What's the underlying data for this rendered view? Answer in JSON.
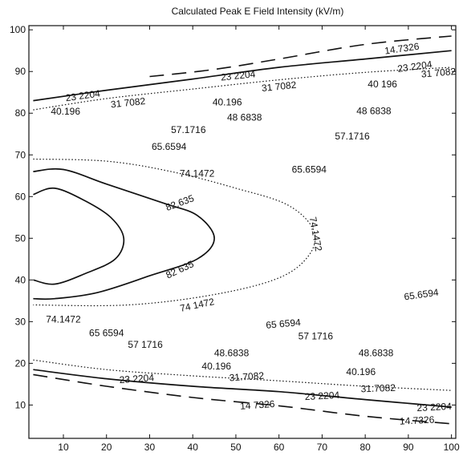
{
  "chart_data": {
    "type": "contour",
    "title": "Calculated Peak E Field Intensity (kV/m)",
    "xlabel": "",
    "ylabel": "",
    "xlim": [
      2,
      101
    ],
    "ylim": [
      2,
      101
    ],
    "xticks": [
      10,
      20,
      30,
      40,
      50,
      60,
      70,
      80,
      90,
      100
    ],
    "yticks": [
      10,
      20,
      30,
      40,
      50,
      60,
      70,
      80,
      90,
      100
    ],
    "grid": false,
    "legend": "none",
    "line_color": "#111111",
    "contours": [
      {
        "level": "14.7326",
        "style": "dashed",
        "paths": [
          [
            [
              30,
              88.8
            ],
            [
              45,
              90.5
            ],
            [
              60,
              93
            ],
            [
              80,
              96.5
            ],
            [
              100,
              98.5
            ]
          ],
          [
            [
              3,
              17.3
            ],
            [
              20,
              14.5
            ],
            [
              40,
              11.8
            ],
            [
              60,
              9.8
            ],
            [
              80,
              7.3
            ],
            [
              100,
              5.5
            ]
          ]
        ]
      },
      {
        "level": "23.2204",
        "style": "solid",
        "paths": [
          [
            [
              3,
              83
            ],
            [
              20,
              85.5
            ],
            [
              40,
              88.2
            ],
            [
              60,
              91
            ],
            [
              80,
              93
            ],
            [
              100,
              95
            ]
          ],
          [
            [
              3,
              18.5
            ],
            [
              20,
              16.3
            ],
            [
              40,
              14.5
            ],
            [
              60,
              13.2
            ],
            [
              80,
              11.3
            ],
            [
              100,
              9.5
            ]
          ]
        ]
      },
      {
        "level": "31.7082",
        "style": "dotted",
        "paths": [
          [
            [
              3,
              80.8
            ],
            [
              20,
              83.5
            ],
            [
              40,
              85.8
            ],
            [
              60,
              88
            ],
            [
              80,
              89.8
            ],
            [
              100,
              91
            ]
          ],
          [
            [
              3,
              20.8
            ],
            [
              20,
              18.5
            ],
            [
              40,
              17
            ],
            [
              60,
              15.8
            ],
            [
              80,
              14.5
            ],
            [
              100,
              13.5
            ]
          ]
        ]
      },
      {
        "level": "74.1472",
        "style": "dotted",
        "paths": [
          [
            [
              3,
              69
            ],
            [
              20,
              68.5
            ],
            [
              35,
              66
            ],
            [
              50,
              62
            ],
            [
              62,
              58
            ],
            [
              68,
              52
            ],
            [
              67,
              46
            ],
            [
              60,
              40.5
            ],
            [
              45,
              36.5
            ],
            [
              25,
              34
            ],
            [
              3,
              34
            ]
          ]
        ]
      },
      {
        "level": "82.635",
        "style": "solid",
        "paths": [
          [
            [
              3,
              66
            ],
            [
              10,
              66.5
            ],
            [
              20,
              63
            ],
            [
              33,
              58.5
            ],
            [
              41,
              55.5
            ],
            [
              45,
              50
            ],
            [
              41,
              45
            ],
            [
              30,
              41
            ],
            [
              18,
              37
            ],
            [
              8,
              35.5
            ],
            [
              3,
              35.5
            ]
          ]
        ]
      },
      {
        "level": "",
        "style": "solid",
        "paths": [
          [
            [
              3,
              60.5
            ],
            [
              8,
              62
            ],
            [
              15,
              59
            ],
            [
              21,
              55
            ],
            [
              24,
              50
            ],
            [
              22,
              45
            ],
            [
              15,
              41.5
            ],
            [
              8,
              39
            ],
            [
              3,
              40
            ]
          ]
        ]
      }
    ],
    "labels": [
      {
        "text": "14.7326",
        "x": 88.5,
        "y": 95.5,
        "rotate": -8
      },
      {
        "text": "23 2204",
        "x": 91.5,
        "y": 91.2,
        "rotate": -8
      },
      {
        "text": "23 2204",
        "x": 50.5,
        "y": 89,
        "rotate": -6
      },
      {
        "text": "31 7082",
        "x": 97,
        "y": 89.7,
        "rotate": -5
      },
      {
        "text": "31 7082",
        "x": 60,
        "y": 86.4,
        "rotate": -6
      },
      {
        "text": "23 2204",
        "x": 14.5,
        "y": 84.2,
        "rotate": -8
      },
      {
        "text": "31 7082",
        "x": 25,
        "y": 82.5,
        "rotate": -6
      },
      {
        "text": "40 196",
        "x": 84,
        "y": 87,
        "rotate": 0
      },
      {
        "text": "40.196",
        "x": 10.5,
        "y": 80.4,
        "rotate": 0
      },
      {
        "text": "40.196",
        "x": 48,
        "y": 82.6,
        "rotate": 0
      },
      {
        "text": "48 6838",
        "x": 82,
        "y": 80.5,
        "rotate": 0
      },
      {
        "text": "48 6838",
        "x": 52,
        "y": 79,
        "rotate": 0
      },
      {
        "text": "57.1716",
        "x": 39,
        "y": 76,
        "rotate": 0
      },
      {
        "text": "57.1716",
        "x": 77,
        "y": 74.5,
        "rotate": 0
      },
      {
        "text": "65.6594",
        "x": 34.5,
        "y": 72,
        "rotate": 0
      },
      {
        "text": "65.6594",
        "x": 67,
        "y": 66.5,
        "rotate": 0
      },
      {
        "text": "74.1472",
        "x": 41,
        "y": 65.5,
        "rotate": 0
      },
      {
        "text": "82.635",
        "x": 37,
        "y": 58.5,
        "rotate": -20
      },
      {
        "text": "74.1472",
        "x": 68.5,
        "y": 51,
        "rotate": 80
      },
      {
        "text": "82 635",
        "x": 37,
        "y": 42.5,
        "rotate": -25
      },
      {
        "text": "74 1472",
        "x": 41,
        "y": 34,
        "rotate": -12
      },
      {
        "text": "65.6594",
        "x": 93,
        "y": 36.5,
        "rotate": -8
      },
      {
        "text": "74.1472",
        "x": 10,
        "y": 30.5,
        "rotate": 0
      },
      {
        "text": "65 6594",
        "x": 61,
        "y": 29.5,
        "rotate": -5
      },
      {
        "text": "65 6594",
        "x": 20,
        "y": 27.3,
        "rotate": 0
      },
      {
        "text": "57 1716",
        "x": 68.5,
        "y": 26.5,
        "rotate": 0
      },
      {
        "text": "57 1716",
        "x": 29,
        "y": 24.5,
        "rotate": 0
      },
      {
        "text": "48.6838",
        "x": 82.5,
        "y": 22.5,
        "rotate": 0
      },
      {
        "text": "48.6838",
        "x": 49,
        "y": 22.5,
        "rotate": 0
      },
      {
        "text": "40.196",
        "x": 45.5,
        "y": 19.3,
        "rotate": 0
      },
      {
        "text": "40.196",
        "x": 79,
        "y": 18,
        "rotate": 0
      },
      {
        "text": "31.7082",
        "x": 52.5,
        "y": 16.8,
        "rotate": -4
      },
      {
        "text": "31.7082",
        "x": 83,
        "y": 14,
        "rotate": -2
      },
      {
        "text": "23 2204",
        "x": 27,
        "y": 16.3,
        "rotate": -4
      },
      {
        "text": "23 2204",
        "x": 70,
        "y": 12.2,
        "rotate": -3
      },
      {
        "text": "23 2204",
        "x": 96,
        "y": 9.5,
        "rotate": -3
      },
      {
        "text": "14 7326",
        "x": 55,
        "y": 10,
        "rotate": -4
      },
      {
        "text": "14.7326",
        "x": 92,
        "y": 6.3,
        "rotate": -3
      }
    ]
  }
}
